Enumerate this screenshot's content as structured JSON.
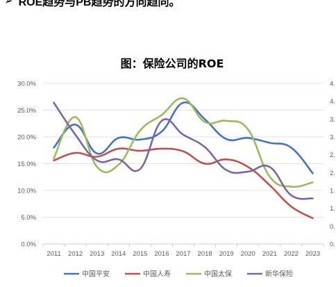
{
  "header": {
    "bullet_symbol": "➢",
    "text": "ROE趋势与PB趋势的方向趋同。"
  },
  "chart_data": {
    "type": "line",
    "title": "图：保险公司的ROE",
    "x": [
      "2011",
      "2012",
      "2013",
      "2014",
      "2015",
      "2016",
      "2017",
      "2018",
      "2019",
      "2020",
      "2021",
      "2022",
      "2023"
    ],
    "yticks": [
      "0.0%",
      "5.0%",
      "10.0%",
      "15.0%",
      "20.0%",
      "25.0%",
      "30.0%"
    ],
    "ylim": [
      0,
      30
    ],
    "right_axis_ticks": [
      "0.",
      "0.",
      "1.",
      "1.",
      "2.",
      "2.",
      "3.",
      "3.",
      "4.",
      "4."
    ],
    "grid": true,
    "legend_position": "bottom",
    "series": [
      {
        "name": "中国平安",
        "color": "#4472C4",
        "values": [
          18.0,
          22.3,
          16.9,
          19.8,
          19.5,
          21.0,
          26.4,
          23.3,
          19.6,
          19.8,
          18.9,
          18.0,
          13.2
        ]
      },
      {
        "name": "中国人寿",
        "color": "#C0504D",
        "values": [
          15.6,
          17.0,
          16.3,
          17.8,
          17.4,
          17.8,
          17.3,
          15.0,
          15.8,
          14.4,
          11.0,
          7.0,
          4.8
        ]
      },
      {
        "name": "中国太保",
        "color": "#9BBB59",
        "values": [
          16.0,
          23.7,
          14.4,
          14.8,
          21.2,
          24.1,
          27.2,
          22.8,
          23.0,
          21.4,
          12.6,
          10.7,
          11.5
        ]
      },
      {
        "name": "新华保险",
        "color": "#8064A2",
        "values": [
          26.4,
          20.4,
          15.6,
          15.8,
          14.0,
          23.0,
          20.4,
          18.1,
          13.8,
          13.5,
          14.4,
          9.1,
          8.5
        ]
      }
    ]
  }
}
